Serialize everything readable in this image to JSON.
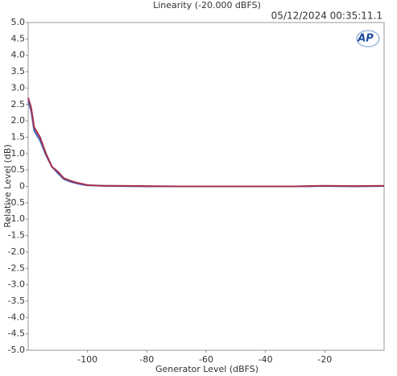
{
  "chart_data": {
    "type": "line",
    "title": "Linearity (-20.000 dBFS)",
    "timestamp": "05/12/2024 00:35:11.1",
    "logo": "AP",
    "xlabel": "Generator Level (dBFS)",
    "ylabel": "Relative Level (dB)",
    "x": [
      -120,
      -119,
      -118,
      -116,
      -114,
      -112,
      -110,
      -108,
      -106,
      -104,
      -102,
      -100,
      -95,
      -90,
      -80,
      -70,
      -60,
      -50,
      -40,
      -30,
      -20,
      -10,
      0
    ],
    "series": [
      {
        "color": "#4a6cc4",
        "values": [
          2.6,
          2.3,
          1.7,
          1.4,
          0.95,
          0.6,
          0.4,
          0.22,
          0.15,
          0.1,
          0.06,
          0.03,
          0.02,
          0.01,
          0,
          0,
          0,
          0,
          0,
          0,
          0.01,
          0,
          0.01
        ]
      },
      {
        "color": "#a3304c",
        "values": [
          2.7,
          2.4,
          1.8,
          1.5,
          1.0,
          0.6,
          0.45,
          0.25,
          0.18,
          0.12,
          0.08,
          0.04,
          0.02,
          0.02,
          0.01,
          0,
          0,
          0,
          0,
          0,
          0.02,
          0.01,
          0.02
        ]
      }
    ],
    "xlim": [
      -120,
      0
    ],
    "xticks": [
      -100,
      -80,
      -60,
      -40,
      -20
    ],
    "ylim": [
      -5,
      5
    ],
    "yticks": [
      {
        "value": 5,
        "label": "5.0"
      },
      {
        "value": 4.5,
        "label": "4.5"
      },
      {
        "value": 4,
        "label": "4.0"
      },
      {
        "value": 3.5,
        "label": "3.5"
      },
      {
        "value": 3,
        "label": "3.0"
      },
      {
        "value": 2.5,
        "label": "2.5"
      },
      {
        "value": 2,
        "label": "2.0"
      },
      {
        "value": 1.5,
        "label": "1.5"
      },
      {
        "value": 1,
        "label": "1.0"
      },
      {
        "value": 0.5,
        "label": "0.5"
      },
      0,
      {
        "value": -0.5,
        "label": "-0.5"
      },
      {
        "value": -1,
        "label": "-1.0"
      },
      {
        "value": -1.5,
        "label": "-1.5"
      },
      {
        "value": -2,
        "label": "-2.0"
      },
      {
        "value": -2.5,
        "label": "-2.5"
      },
      {
        "value": -3,
        "label": "-3.0"
      },
      {
        "value": -3.5,
        "label": "-3.5"
      },
      {
        "value": -4,
        "label": "-4.0"
      },
      {
        "value": -4.5,
        "label": "-4.5"
      },
      {
        "value": -5,
        "label": "-5.0"
      }
    ]
  }
}
